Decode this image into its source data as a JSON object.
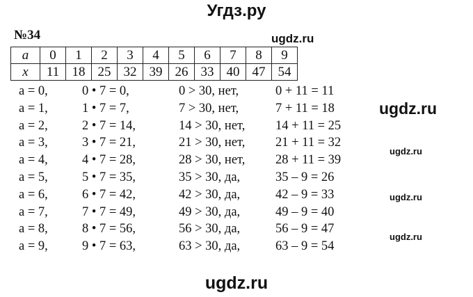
{
  "header": {
    "site_title": "Угдз.ру"
  },
  "exercise": {
    "number": "№34"
  },
  "watermarks": [
    "ugdz.ru",
    "ugdz.ru",
    "ugdz.ru",
    "ugdz.ru",
    "ugdz.ru",
    "ugdz.ru"
  ],
  "table": {
    "rows": [
      {
        "label": "a",
        "values": [
          "0",
          "1",
          "2",
          "3",
          "4",
          "5",
          "6",
          "7",
          "8",
          "9"
        ]
      },
      {
        "label": "x",
        "values": [
          "11",
          "18",
          "25",
          "32",
          "39",
          "26",
          "33",
          "40",
          "47",
          "54"
        ]
      }
    ]
  },
  "lines": [
    [
      "a = 0,",
      "0 • 7 = 0,",
      "0 > 30, нет,",
      "0 + 11 = 11"
    ],
    [
      "a = 1,",
      "1 • 7 = 7,",
      "7 > 30, нет,",
      "7 + 11 = 18"
    ],
    [
      "a = 2,",
      "2 • 7 = 14,",
      "14 > 30, нет,",
      "14 + 11 = 25"
    ],
    [
      "a = 3,",
      "3 • 7 = 21,",
      "21 > 30, нет,",
      "21 + 11 = 32"
    ],
    [
      "a = 4,",
      "4 • 7 = 28,",
      "28 > 30, нет,",
      "28 + 11 = 39"
    ],
    [
      "a = 5,",
      "5 • 7 = 35,",
      "35 > 30, да,",
      "35 – 9 = 26"
    ],
    [
      "a = 6,",
      "6 • 7 = 42,",
      "42 > 30, да,",
      "42 – 9 = 33"
    ],
    [
      "a = 7,",
      "7 • 7 = 49,",
      "49 > 30, да,",
      "49 – 9 = 40"
    ],
    [
      "a = 8,",
      "8 • 7 = 56,",
      "56 > 30, да,",
      "56 – 9 = 47"
    ],
    [
      "a = 9,",
      "9 • 7 = 63,",
      "63 > 30, да,",
      "63 – 9 = 54"
    ]
  ]
}
